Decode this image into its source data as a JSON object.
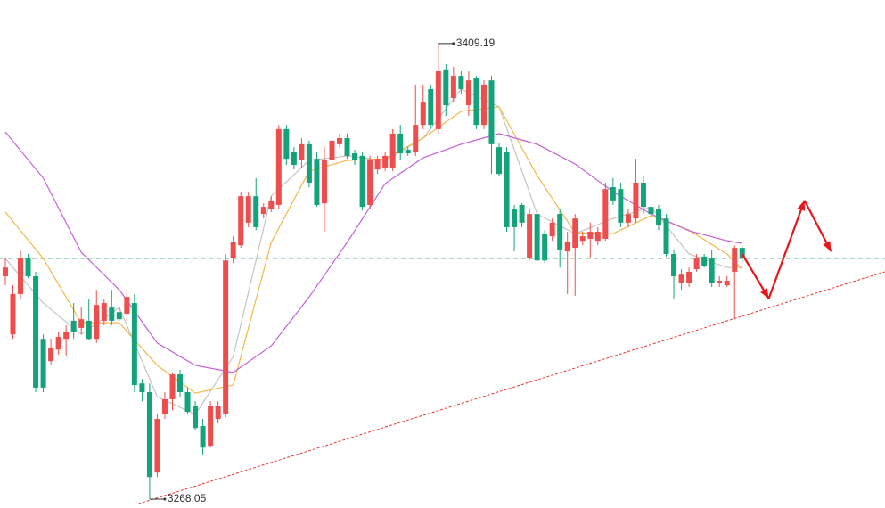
{
  "chart_data": {
    "type": "candlestick",
    "up_color": "#ee4d4d",
    "down_color": "#13a37a",
    "xlim": [
      -0.7,
      115.8
    ],
    "ylim": [
      3265.3,
      3422.7
    ],
    "open": [
      3337.1,
      3319.1,
      3331.6,
      3342.6,
      3337.1,
      3317.7,
      3310.8,
      3314.4,
      3317.7,
      3323.3,
      3321.1,
      3323.3,
      3317.7,
      3323.3,
      3327.4,
      3326.0,
      3325.5,
      3328.8,
      3303.9,
      3301.2,
      3276.3,
      3294.3,
      3299.0,
      3306.7,
      3301.2,
      3297.0,
      3290.7,
      3284.6,
      3292.9,
      3294.3,
      3342.6,
      3346.7,
      3353.7,
      3361.9,
      3356.4,
      3357.8,
      3359.2,
      3382.7,
      3375.7,
      3373.0,
      3378.0,
      3373.5,
      3359.7,
      3373.0,
      3378.0,
      3379.9,
      3375.2,
      3374.4,
      3359.2,
      3370.2,
      3370.8,
      3370.8,
      3381.3,
      3376.3,
      3375.7,
      3384.0,
      3395.1,
      3382.7,
      3401.2,
      3392.3,
      3399.2,
      3390.1,
      3398.4,
      3384.0,
      3397.8,
      3377.1,
      3375.7,
      3357.8,
      3359.2,
      3342.6,
      3356.4,
      3350.3,
      3349.5,
      3356.4,
      3344.8,
      3345.9,
      3348.1,
      3348.7,
      3348.1,
      3348.7,
      3364.7,
      3364.1,
      3353.7,
      3355.0,
      3366.1,
      3358.6,
      3357.8,
      3355.0,
      3344.0,
      3334.9,
      3334.9,
      3339.3,
      3343.2,
      3342.6,
      3334.9,
      3334.3,
      3338.5,
      3345.9
    ],
    "high": [
      3342.6,
      3334.3,
      3345.4,
      3344.0,
      3338.5,
      3319.1,
      3317.7,
      3320.0,
      3321.9,
      3328.8,
      3327.4,
      3330.2,
      3332.9,
      3330.2,
      3332.9,
      3327.4,
      3332.9,
      3331.6,
      3305.3,
      3303.9,
      3294.3,
      3301.2,
      3307.3,
      3308.1,
      3302.6,
      3298.4,
      3292.9,
      3298.4,
      3298.4,
      3344.0,
      3349.5,
      3363.3,
      3363.3,
      3367.5,
      3359.7,
      3361.9,
      3384.0,
      3384.0,
      3377.1,
      3379.9,
      3379.1,
      3375.7,
      3377.1,
      3389.6,
      3381.3,
      3381.3,
      3376.3,
      3375.7,
      3374.4,
      3374.4,
      3375.7,
      3382.7,
      3384.0,
      3377.1,
      3396.5,
      3396.5,
      3396.5,
      3409.19,
      3402.8,
      3402.0,
      3400.6,
      3400.6,
      3399.2,
      3397.8,
      3399.2,
      3378.5,
      3377.1,
      3359.2,
      3359.7,
      3357.8,
      3357.5,
      3351.4,
      3355.0,
      3357.8,
      3350.9,
      3356.4,
      3350.9,
      3353.7,
      3352.3,
      3366.1,
      3367.5,
      3366.1,
      3357.8,
      3373.5,
      3368.0,
      3360.6,
      3359.2,
      3356.4,
      3345.4,
      3339.3,
      3339.8,
      3344.0,
      3344.0,
      3345.4,
      3337.1,
      3337.1,
      3346.7,
      3346.7
    ],
    "low": [
      3334.3,
      3317.7,
      3330.2,
      3336.5,
      3301.2,
      3301.2,
      3309.5,
      3312.8,
      3312.2,
      3317.7,
      3319.1,
      3317.2,
      3316.4,
      3321.9,
      3321.9,
      3323.3,
      3323.3,
      3301.2,
      3298.4,
      3268.05,
      3274.9,
      3292.9,
      3295.6,
      3299.8,
      3294.3,
      3289.6,
      3281.8,
      3284.0,
      3291.5,
      3293.4,
      3341.2,
      3345.9,
      3352.3,
      3351.4,
      3355.0,
      3357.0,
      3357.8,
      3371.6,
      3370.2,
      3370.8,
      3364.7,
      3358.6,
      3350.9,
      3371.6,
      3377.1,
      3373.5,
      3371.6,
      3357.5,
      3357.8,
      3368.8,
      3369.7,
      3369.7,
      3373.0,
      3374.4,
      3374.4,
      3382.7,
      3382.7,
      3381.3,
      3386.8,
      3390.9,
      3393.7,
      3386.8,
      3382.7,
      3382.7,
      3368.8,
      3368.0,
      3350.9,
      3344.8,
      3352.3,
      3342.0,
      3341.5,
      3341.2,
      3348.1,
      3339.8,
      3331.6,
      3331.0,
      3346.7,
      3342.6,
      3346.7,
      3348.1,
      3359.2,
      3352.3,
      3352.3,
      3353.7,
      3356.4,
      3355.0,
      3351.4,
      3343.2,
      3330.2,
      3332.9,
      3333.8,
      3338.5,
      3339.8,
      3333.8,
      3333.8,
      3333.8,
      3323.8,
      3341.2
    ],
    "close": [
      3339.8,
      3331.6,
      3342.6,
      3337.1,
      3302.6,
      3302.6,
      3315.0,
      3318.3,
      3320.0,
      3320.0,
      3323.8,
      3317.7,
      3328.2,
      3328.8,
      3323.3,
      3323.8,
      3330.7,
      3303.4,
      3301.2,
      3274.9,
      3292.9,
      3299.0,
      3306.7,
      3301.2,
      3295.1,
      3290.1,
      3284.0,
      3297.0,
      3297.0,
      3342.0,
      3347.6,
      3361.9,
      3361.9,
      3352.3,
      3358.6,
      3360.6,
      3382.7,
      3373.5,
      3371.6,
      3378.0,
      3366.1,
      3359.2,
      3373.0,
      3379.1,
      3379.9,
      3374.4,
      3373.0,
      3358.6,
      3373.0,
      3373.5,
      3374.4,
      3381.3,
      3375.2,
      3375.2,
      3384.0,
      3390.9,
      3384.0,
      3400.6,
      3390.1,
      3399.2,
      3395.1,
      3397.8,
      3384.0,
      3396.5,
      3378.0,
      3368.8,
      3352.3,
      3352.3,
      3353.7,
      3356.4,
      3342.0,
      3342.0,
      3353.7,
      3345.4,
      3347.6,
      3355.0,
      3349.5,
      3350.9,
      3350.9,
      3364.1,
      3360.6,
      3353.7,
      3356.4,
      3366.1,
      3358.6,
      3356.4,
      3353.1,
      3344.0,
      3337.1,
      3337.6,
      3338.5,
      3342.6,
      3340.4,
      3334.9,
      3335.7,
      3335.7,
      3345.9,
      3342.6
    ],
    "last_price_color": "#7fc4a0",
    "moving_averages": [
      {
        "color": "#c4c4c4",
        "x": [
          0,
          5,
          10,
          15,
          20,
          25,
          30,
          35,
          40,
          45,
          50,
          55,
          60,
          65,
          70,
          75,
          80,
          85,
          90,
          95,
          97
        ],
        "values": [
          3342.6,
          3328.8,
          3319.1,
          3327.4,
          3299.8,
          3294.3,
          3312.2,
          3361.9,
          3373.0,
          3374.4,
          3373.0,
          3379.9,
          3395.1,
          3389.6,
          3356.4,
          3350.3,
          3355.0,
          3358.6,
          3344.0,
          3339.8,
          3339.8
        ]
      },
      {
        "color": "#f2b84b",
        "x": [
          0,
          5,
          10,
          15,
          20,
          25,
          30,
          35,
          40,
          45,
          50,
          55,
          60,
          65,
          70,
          75,
          80,
          85,
          90,
          95,
          97
        ],
        "values": [
          3357.0,
          3342.6,
          3322.7,
          3322.7,
          3309.5,
          3300.9,
          3303.4,
          3347.6,
          3369.7,
          3373.0,
          3373.5,
          3379.9,
          3388.2,
          3389.6,
          3368.3,
          3350.6,
          3350.3,
          3355.9,
          3351.4,
          3344.0,
          3339.3
        ]
      },
      {
        "color": "#c560d8",
        "x": [
          0,
          5,
          10,
          15,
          20,
          25,
          30,
          35,
          40,
          45,
          50,
          55,
          60,
          65,
          70,
          75,
          80,
          85,
          90,
          95,
          97
        ],
        "values": [
          3381.8,
          3367.5,
          3344.5,
          3332.9,
          3316.4,
          3309.5,
          3307.3,
          3315.5,
          3330.7,
          3347.6,
          3365.8,
          3373.8,
          3378.0,
          3381.3,
          3378.0,
          3371.9,
          3363.3,
          3356.4,
          3351.2,
          3348.1,
          3347.3
        ]
      }
    ],
    "trendline": {
      "color": "#e8332f",
      "x": [
        17.5,
        115.8
      ],
      "values": [
        3266.6,
        3338.5
      ]
    },
    "forecast": {
      "color": "#e8161b",
      "x": [
        97,
        100.5,
        105.2,
        108.7
      ],
      "values": [
        3344.0,
        3330.2,
        3360.6,
        3344.8
      ]
    }
  }
}
